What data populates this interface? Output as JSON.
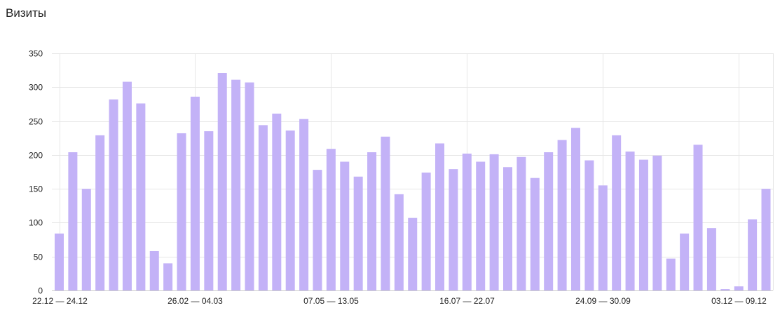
{
  "chart_data": {
    "type": "bar",
    "title": "Визиты",
    "xlabel": "",
    "ylabel": "",
    "ylim": [
      0,
      350
    ],
    "yticks": [
      0,
      50,
      100,
      150,
      200,
      250,
      300,
      350
    ],
    "grid": true,
    "bar_color": "#c3b2f7",
    "x_tick_labels": [
      {
        "index": 0,
        "label": "22.12 — 24.12"
      },
      {
        "index": 10,
        "label": "26.02 — 04.03"
      },
      {
        "index": 20,
        "label": "07.05 — 13.05"
      },
      {
        "index": 30,
        "label": "16.07 — 22.07"
      },
      {
        "index": 40,
        "label": "24.09 — 30.09"
      },
      {
        "index": 50,
        "label": "03.12 — 09.12"
      }
    ],
    "values": [
      84,
      204,
      150,
      229,
      282,
      308,
      276,
      58,
      40,
      232,
      286,
      235,
      321,
      311,
      307,
      244,
      261,
      236,
      253,
      178,
      209,
      190,
      168,
      204,
      227,
      142,
      107,
      174,
      217,
      179,
      202,
      190,
      201,
      182,
      197,
      166,
      204,
      222,
      240,
      192,
      155,
      229,
      205,
      193,
      199,
      47,
      84,
      215,
      92,
      2,
      6,
      105,
      150
    ]
  }
}
